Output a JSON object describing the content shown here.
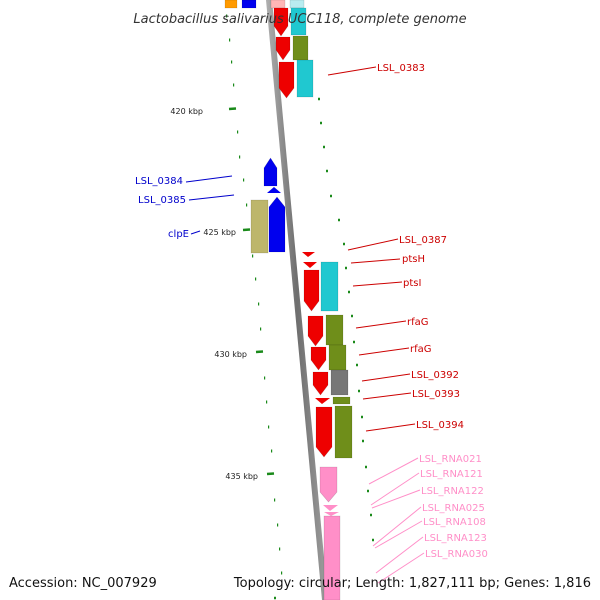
{
  "title": "Lactobacillus salivarius UCC118, complete genome",
  "footer": {
    "accession": "Accession: NC_007929",
    "summary": "Topology: circular; Length: 1,827,111 bp; Genes: 1,816"
  },
  "ticks": [
    "420 kbp",
    "425 kbp",
    "430 kbp",
    "435 kbp"
  ],
  "colors": {
    "red": "#ee0000",
    "blue": "#0000ee",
    "cyan": "#20c8d0",
    "olive": "#6f8e1a",
    "khaki": "#bdb66b",
    "pink": "#ff8fc8",
    "gray": "#777777",
    "orange": "#ff9a00",
    "backbone": "#888888",
    "tick": "#1a8a1a"
  },
  "labels": [
    {
      "text": "LSL_0383",
      "color": "#cc0000"
    },
    {
      "text": "LSL_0384",
      "color": "#0000cc"
    },
    {
      "text": "LSL_0385",
      "color": "#0000cc"
    },
    {
      "text": "clpE",
      "color": "#0000cc"
    },
    {
      "text": "LSL_0387",
      "color": "#cc0000"
    },
    {
      "text": "ptsH",
      "color": "#cc0000"
    },
    {
      "text": "ptsI",
      "color": "#cc0000"
    },
    {
      "text": "rfaG",
      "color": "#cc0000"
    },
    {
      "text": "rfaG",
      "color": "#cc0000"
    },
    {
      "text": "LSL_0392",
      "color": "#cc0000"
    },
    {
      "text": "LSL_0393",
      "color": "#cc0000"
    },
    {
      "text": "LSL_0394",
      "color": "#cc0000"
    },
    {
      "text": "LSL_RNA021",
      "color": "#ff8fc8"
    },
    {
      "text": "LSL_RNA121",
      "color": "#ff8fc8"
    },
    {
      "text": "LSL_RNA122",
      "color": "#ff8fc8"
    },
    {
      "text": "LSL_RNA025",
      "color": "#ff8fc8"
    },
    {
      "text": "LSL_RNA108",
      "color": "#ff8fc8"
    },
    {
      "text": "LSL_RNA123",
      "color": "#ff8fc8"
    },
    {
      "text": "LSL_RNA030",
      "color": "#ff8fc8"
    }
  ]
}
